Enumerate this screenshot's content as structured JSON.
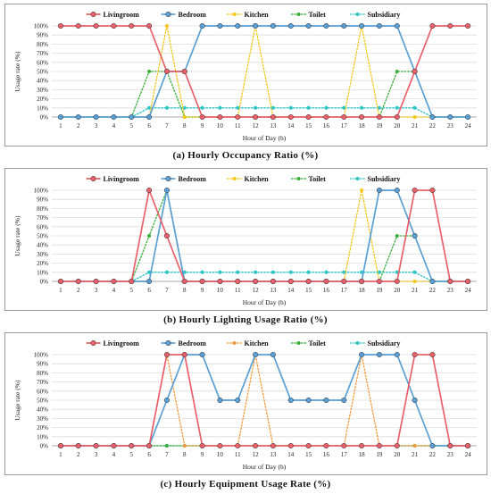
{
  "palette": {
    "Livingroom": "#e8606a",
    "Bedroom": "#5a9fd4",
    "Kitchen": "#f5c518",
    "Toilet": "#3cae3c",
    "Subsidiary": "#2bc4c4",
    "equipment_kitchen": "#f39a3a"
  },
  "chart_data": [
    {
      "type": "line",
      "caption": "(a) Hourly Occupancy Ratio (%)",
      "xlabel": "Hour of Day (h)",
      "ylabel": "Usage rate (%)",
      "x": [
        1,
        2,
        3,
        4,
        5,
        6,
        7,
        8,
        9,
        10,
        11,
        12,
        13,
        14,
        15,
        16,
        17,
        18,
        19,
        20,
        21,
        22,
        23,
        24
      ],
      "ylim": [
        0,
        100
      ],
      "yticks": [
        "0%",
        "10%",
        "20%",
        "30%",
        "40%",
        "50%",
        "60%",
        "70%",
        "80%",
        "90%",
        "100%"
      ],
      "legend_position": "top",
      "grid": true,
      "series": [
        {
          "name": "Livingroom",
          "style": "solid",
          "values": [
            100,
            100,
            100,
            100,
            100,
            100,
            50,
            50,
            0,
            0,
            0,
            0,
            0,
            0,
            0,
            0,
            0,
            0,
            0,
            0,
            50,
            100,
            100,
            100
          ]
        },
        {
          "name": "Bedroom",
          "style": "solid",
          "values": [
            0,
            0,
            0,
            0,
            0,
            0,
            50,
            50,
            100,
            100,
            100,
            100,
            100,
            100,
            100,
            100,
            100,
            100,
            100,
            100,
            50,
            0,
            0,
            0
          ]
        },
        {
          "name": "Kitchen",
          "style": "dotted",
          "values": [
            0,
            0,
            0,
            0,
            0,
            0,
            100,
            0,
            0,
            0,
            0,
            100,
            0,
            0,
            0,
            0,
            0,
            100,
            0,
            0,
            0,
            0,
            0,
            0
          ]
        },
        {
          "name": "Toilet",
          "style": "dotted",
          "values": [
            0,
            0,
            0,
            0,
            0,
            50,
            50,
            0,
            0,
            0,
            0,
            0,
            0,
            0,
            0,
            0,
            0,
            0,
            0,
            50,
            50,
            0,
            0,
            0
          ]
        },
        {
          "name": "Subsidiary",
          "style": "dotted",
          "values": [
            0,
            0,
            0,
            0,
            0,
            10,
            10,
            10,
            10,
            10,
            10,
            10,
            10,
            10,
            10,
            10,
            10,
            10,
            10,
            10,
            10,
            0,
            0,
            0
          ]
        }
      ]
    },
    {
      "type": "line",
      "caption": "(b) Hourly Lighting Usage Ratio (%)",
      "xlabel": "Hour of Day (h)",
      "ylabel": "Usage rate (%)",
      "x": [
        1,
        2,
        3,
        4,
        5,
        6,
        7,
        8,
        9,
        10,
        11,
        12,
        13,
        14,
        15,
        16,
        17,
        18,
        19,
        20,
        21,
        22,
        23,
        24
      ],
      "ylim": [
        0,
        100
      ],
      "yticks": [
        "0%",
        "10%",
        "20%",
        "30%",
        "40%",
        "50%",
        "60%",
        "70%",
        "80%",
        "90%",
        "100%"
      ],
      "legend_position": "top",
      "grid": true,
      "series": [
        {
          "name": "Livingroom",
          "style": "solid",
          "values": [
            0,
            0,
            0,
            0,
            0,
            100,
            50,
            0,
            0,
            0,
            0,
            0,
            0,
            0,
            0,
            0,
            0,
            0,
            0,
            0,
            100,
            100,
            0,
            0
          ]
        },
        {
          "name": "Bedroom",
          "style": "solid",
          "values": [
            0,
            0,
            0,
            0,
            0,
            0,
            100,
            0,
            0,
            0,
            0,
            0,
            0,
            0,
            0,
            0,
            0,
            0,
            100,
            100,
            50,
            0,
            0,
            0
          ]
        },
        {
          "name": "Kitchen",
          "style": "dotted",
          "values": [
            0,
            0,
            0,
            0,
            0,
            0,
            100,
            0,
            0,
            0,
            0,
            0,
            0,
            0,
            0,
            0,
            0,
            100,
            0,
            0,
            0,
            0,
            0,
            0
          ]
        },
        {
          "name": "Toilet",
          "style": "dotted",
          "values": [
            0,
            0,
            0,
            0,
            0,
            50,
            100,
            0,
            0,
            0,
            0,
            0,
            0,
            0,
            0,
            0,
            0,
            0,
            0,
            50,
            50,
            0,
            0,
            0
          ]
        },
        {
          "name": "Subsidiary",
          "style": "dotted",
          "values": [
            0,
            0,
            0,
            0,
            0,
            10,
            10,
            10,
            10,
            10,
            10,
            10,
            10,
            10,
            10,
            10,
            10,
            10,
            10,
            10,
            10,
            0,
            0,
            0
          ]
        }
      ]
    },
    {
      "type": "line",
      "caption": "(c) Hourly Equipment Usage Rate (%)",
      "xlabel": "Hour of Day (h)",
      "ylabel": "Usage rate (%)",
      "x": [
        1,
        2,
        3,
        4,
        5,
        6,
        7,
        8,
        9,
        10,
        11,
        12,
        13,
        14,
        15,
        16,
        17,
        18,
        19,
        20,
        21,
        22,
        23,
        24
      ],
      "ylim": [
        0,
        100
      ],
      "yticks": [
        "0%",
        "10%",
        "20%",
        "30%",
        "40%",
        "50%",
        "60%",
        "70%",
        "80%",
        "90%",
        "100%"
      ],
      "legend_position": "top",
      "grid": true,
      "series": [
        {
          "name": "Livingroom",
          "style": "solid",
          "values": [
            0,
            0,
            0,
            0,
            0,
            0,
            100,
            100,
            0,
            0,
            0,
            0,
            0,
            0,
            0,
            0,
            0,
            0,
            0,
            0,
            100,
            100,
            0,
            0
          ]
        },
        {
          "name": "Bedroom",
          "style": "solid",
          "values": [
            0,
            0,
            0,
            0,
            0,
            0,
            50,
            100,
            100,
            50,
            50,
            100,
            100,
            50,
            50,
            50,
            50,
            100,
            100,
            100,
            50,
            0,
            0,
            0
          ]
        },
        {
          "name": "Kitchen",
          "style": "dotted",
          "values": [
            0,
            0,
            0,
            0,
            0,
            0,
            100,
            0,
            0,
            0,
            0,
            100,
            0,
            0,
            0,
            0,
            0,
            100,
            0,
            0,
            0,
            0,
            0,
            0
          ]
        },
        {
          "name": "Toilet",
          "style": "dotted",
          "values": [
            0,
            0,
            0,
            0,
            0,
            0,
            0,
            0,
            0,
            0,
            0,
            0,
            0,
            0,
            0,
            0,
            0,
            0,
            0,
            0,
            0,
            0,
            0,
            0
          ]
        },
        {
          "name": "Subsidiary",
          "style": "dotted",
          "values": [
            0,
            0,
            0,
            0,
            0,
            0,
            0,
            0,
            0,
            0,
            0,
            0,
            0,
            0,
            0,
            0,
            0,
            0,
            0,
            0,
            0,
            0,
            0,
            0
          ]
        }
      ]
    }
  ]
}
